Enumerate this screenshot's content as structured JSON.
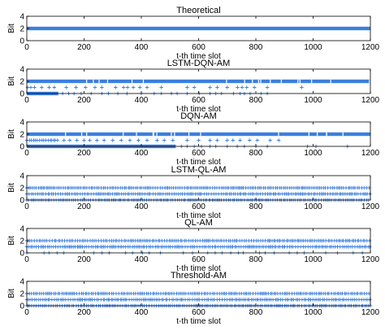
{
  "chart_data": [
    {
      "type": "scatter",
      "title": "Theoretical",
      "xlabel": "t-th time slot",
      "ylabel": "Bit",
      "xlim": [
        0,
        1200
      ],
      "ylim": [
        0,
        4
      ],
      "xticks": [
        "0",
        "200",
        "400",
        "600",
        "800",
        "1000",
        "1200"
      ],
      "yticks": [
        "0",
        "2",
        "4"
      ],
      "series": [
        {
          "values_y": 2,
          "x_ranges": [
            [
              0,
              1200
            ]
          ],
          "density": "continuous"
        }
      ]
    },
    {
      "type": "scatter",
      "title": "LSTM-DQN-AM",
      "xlabel": "t-th time slot",
      "ylabel": "Bit",
      "xlim": [
        0,
        1200
      ],
      "ylim": [
        0,
        4
      ],
      "xticks": [
        "0",
        "200",
        "400",
        "600",
        "800",
        "1000",
        "1200"
      ],
      "yticks": [
        "0",
        "2",
        "4"
      ],
      "series": [
        {
          "values_y": 2,
          "x_ranges": [
            [
              0,
              1200
            ]
          ],
          "density": "mostly-continuous"
        },
        {
          "values_y": 1,
          "x_points": [
            3,
            14,
            27,
            52,
            78,
            96,
            138,
            172,
            205,
            238,
            262,
            310,
            338,
            352,
            372,
            395,
            420,
            470,
            560,
            585,
            640,
            665,
            700,
            736,
            752,
            768,
            795,
            840,
            960
          ]
        },
        {
          "values_y": 0,
          "x_ranges": [
            [
              0,
              110
            ]
          ],
          "x_points": [
            125,
            146,
            165,
            190,
            225,
            262,
            285,
            318,
            350,
            400,
            445,
            470,
            505,
            525,
            560,
            602,
            640,
            660,
            680,
            722,
            745,
            760,
            780,
            818,
            840
          ]
        }
      ]
    },
    {
      "type": "scatter",
      "title": "DQN-AM",
      "xlabel": "t-th time slot",
      "ylabel": "Bit",
      "xlim": [
        0,
        1200
      ],
      "ylim": [
        0,
        4
      ],
      "xticks": [
        "0",
        "200",
        "400",
        "600",
        "800",
        "1000",
        "1200"
      ],
      "yticks": [
        "0",
        "2",
        "4"
      ],
      "series": [
        {
          "values_y": 2,
          "x_ranges": [
            [
              0,
              1200
            ]
          ],
          "density": "mostly-continuous"
        },
        {
          "values_y": 1,
          "x_ranges": [
            [
              0,
              110
            ]
          ],
          "x_points": [
            130,
            150,
            175,
            200,
            220,
            245,
            270,
            300,
            330,
            360,
            390,
            420,
            455,
            480,
            510,
            560,
            600,
            640,
            665,
            700,
            720,
            745,
            778,
            805,
            850,
            880
          ]
        },
        {
          "values_y": 0,
          "x_ranges": [
            [
              0,
              520
            ]
          ],
          "x_points": [
            540,
            560,
            585,
            610,
            640,
            660,
            700,
            735,
            760,
            800,
            840,
            980,
            1010,
            1120
          ]
        }
      ]
    },
    {
      "type": "scatter",
      "title": "LSTM-QL-AM",
      "xlabel": "t-th time slot",
      "ylabel": "Bit",
      "xlim": [
        0,
        1200
      ],
      "ylim": [
        0,
        4
      ],
      "xticks": [
        "0",
        "200",
        "400",
        "600",
        "800",
        "1000",
        "1200"
      ],
      "yticks": [
        "0",
        "2",
        "4"
      ],
      "series": [
        {
          "values_y": 2,
          "x_ranges": [
            [
              0,
              1200
            ]
          ],
          "density": "dense"
        },
        {
          "values_y": 1,
          "x_ranges": [
            [
              0,
              1200
            ]
          ],
          "density": "dense"
        },
        {
          "values_y": 0,
          "x_ranges": [
            [
              0,
              1200
            ]
          ],
          "density": "dense"
        }
      ]
    },
    {
      "type": "scatter",
      "title": "QL-AM",
      "xlabel": "t-th time slot",
      "ylabel": "Bit",
      "xlim": [
        0,
        1200
      ],
      "ylim": [
        0,
        4
      ],
      "xticks": [
        "0",
        "200",
        "400",
        "600",
        "800",
        "1000",
        "1200"
      ],
      "yticks": [
        "0",
        "2",
        "4"
      ],
      "series": [
        {
          "values_y": 2,
          "x_ranges": [
            [
              0,
              1200
            ]
          ],
          "density": "dense"
        },
        {
          "values_y": 1,
          "x_ranges": [
            [
              0,
              1200
            ]
          ],
          "density": "dense"
        },
        {
          "values_y": 0,
          "x_ranges": [
            [
              0,
              1200
            ]
          ],
          "density": "sparse"
        }
      ]
    },
    {
      "type": "scatter",
      "title": "Threshold-AM",
      "xlabel": "t-th time slot",
      "ylabel": "Bit",
      "xlim": [
        0,
        1200
      ],
      "ylim": [
        0,
        4
      ],
      "xticks": [
        "0",
        "200",
        "400",
        "600",
        "800",
        "1000",
        "1200"
      ],
      "yticks": [
        "0",
        "2",
        "4"
      ],
      "series": [
        {
          "values_y": 2,
          "x_ranges": [
            [
              0,
              1200
            ]
          ],
          "density": "dense"
        },
        {
          "values_y": 1,
          "x_ranges": [
            [
              0,
              1200
            ]
          ],
          "density": "dense"
        },
        {
          "values_y": 0,
          "x_ranges": [
            [
              0,
              1200
            ]
          ],
          "density": "dense"
        }
      ]
    }
  ],
  "style": {
    "marker_color": "#3b7fe0",
    "axis_color": "#000000",
    "marker": "+"
  }
}
